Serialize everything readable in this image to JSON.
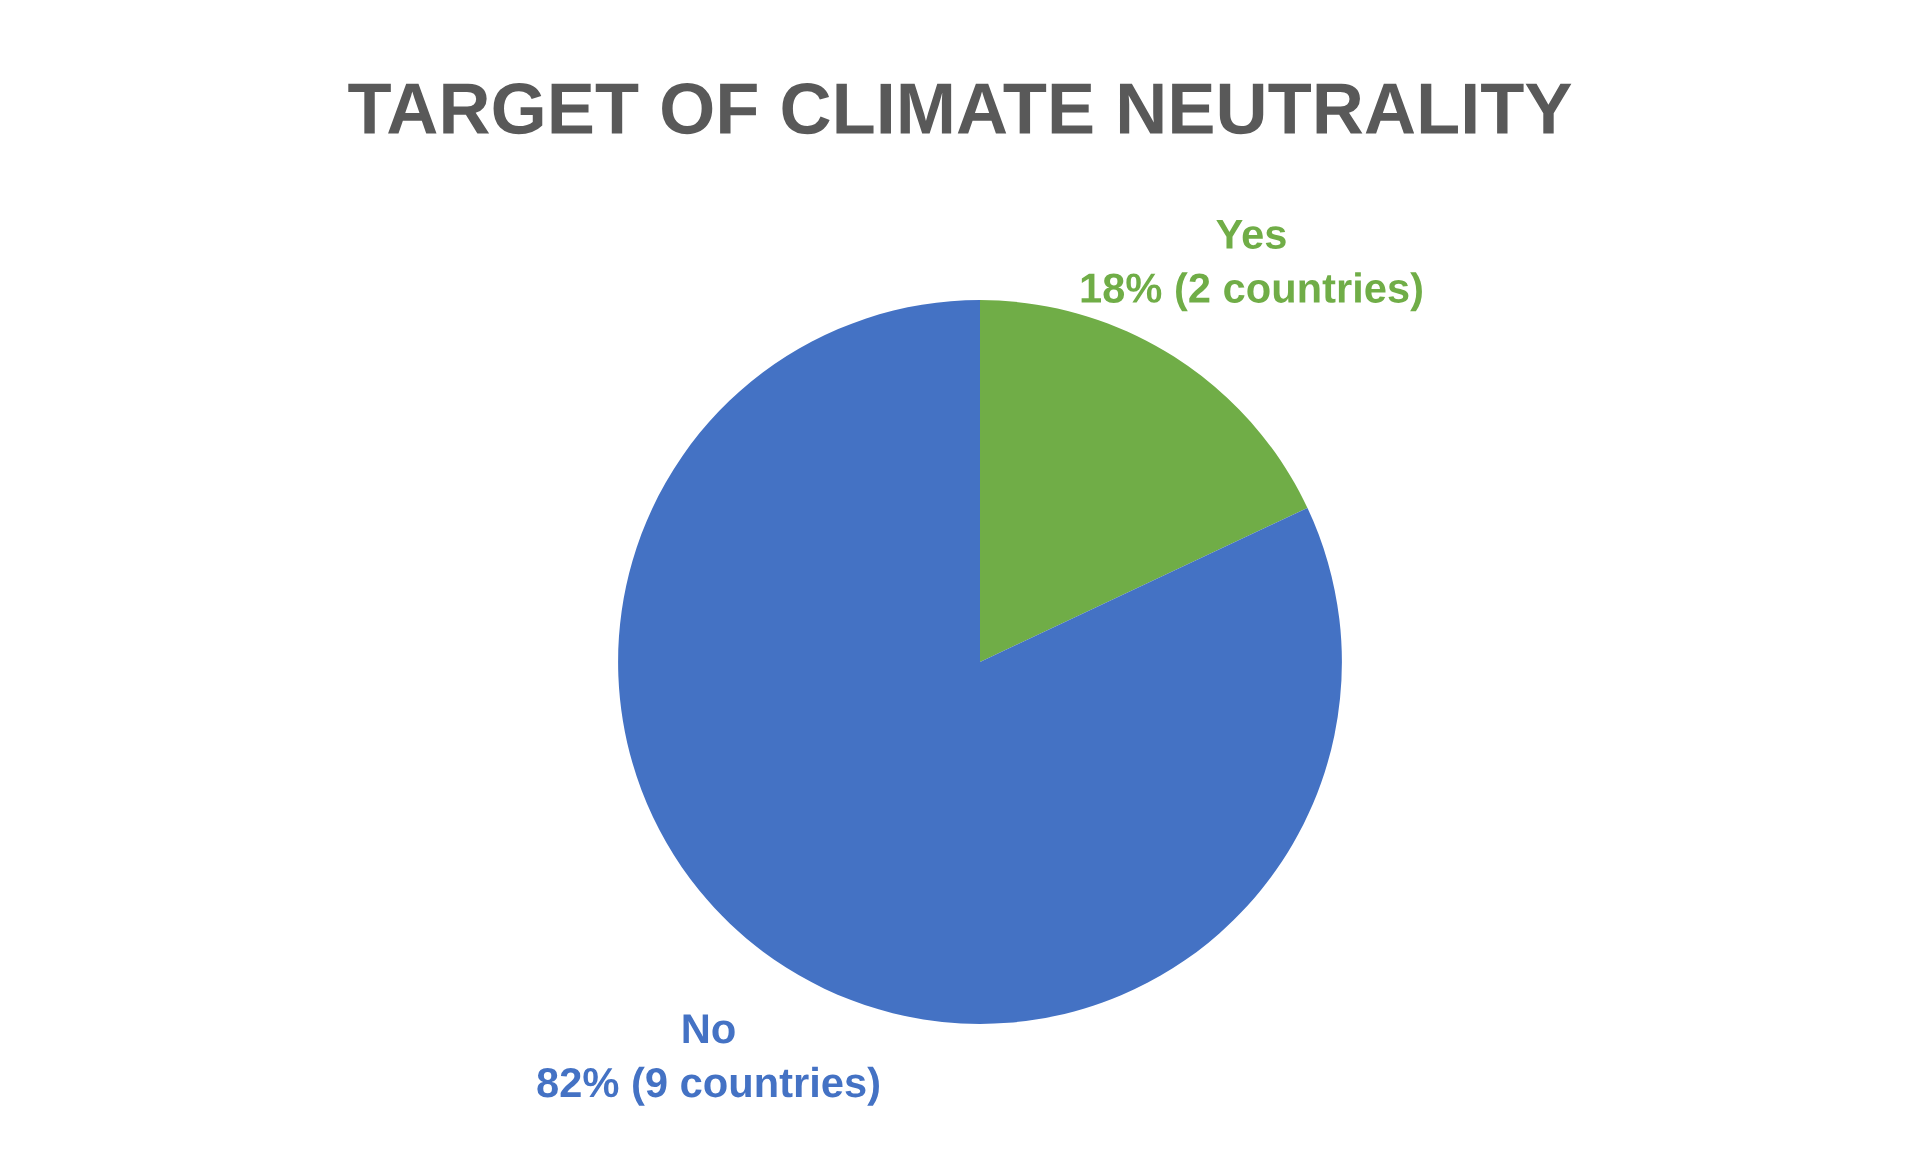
{
  "chart_data": {
    "type": "pie",
    "title": "TARGET OF CLIMATE NEUTRALITY",
    "categories": [
      "Yes",
      "No"
    ],
    "values": [
      18,
      82
    ],
    "colors": [
      "#70ad47",
      "#4472c4"
    ],
    "value_labels": [
      "18% (2 countries)",
      "82% (9 countries)"
    ]
  }
}
